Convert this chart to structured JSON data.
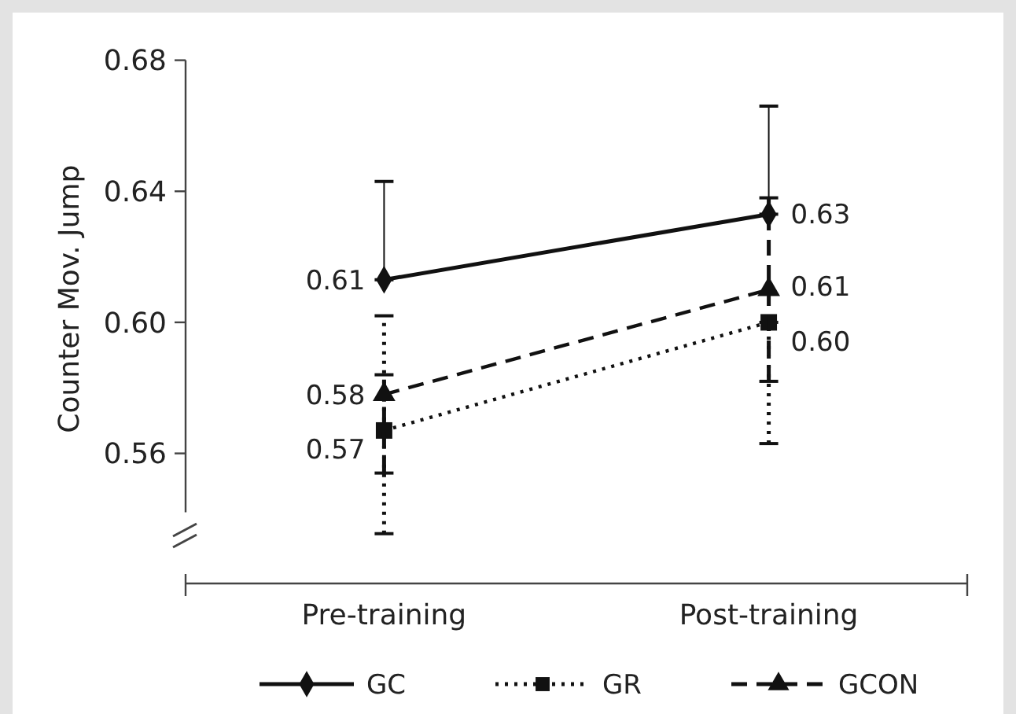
{
  "chart_data": {
    "type": "line",
    "ylabel": "Counter Mov. Jump",
    "categories": [
      "Pre-training",
      "Post-training"
    ],
    "ylim": [
      0.542,
      0.68
    ],
    "yticks": [
      0.56,
      {
        "value": 0.6,
        "label": "0.60"
      },
      0.64,
      0.68
    ],
    "legend": "bottom",
    "series": [
      {
        "name": "GC",
        "color": "#111111",
        "marker": "diamond",
        "line_style": "solid",
        "values": [
          0.613,
          0.633
        ],
        "errors": [
          [
            0.613,
            0.643
          ],
          [
            0.633,
            0.666
          ]
        ],
        "value_labels": [
          "0.61",
          "0.63"
        ]
      },
      {
        "name": "GR",
        "color": "#111111",
        "marker": "square",
        "line_style": "dotted",
        "values": [
          0.567,
          0.6
        ],
        "errors": [
          [
            0.5355,
            0.602
          ],
          [
            0.563,
            0.6
          ]
        ],
        "value_labels": [
          "0.57",
          "0.60"
        ]
      },
      {
        "name": "GCON",
        "color": "#111111",
        "marker": "triangle",
        "line_style": "dashed",
        "values": [
          0.578,
          0.61
        ],
        "errors": [
          [
            0.554,
            0.584
          ],
          [
            0.582,
            0.638
          ]
        ],
        "value_labels": [
          "0.58",
          "0.61"
        ]
      }
    ]
  }
}
